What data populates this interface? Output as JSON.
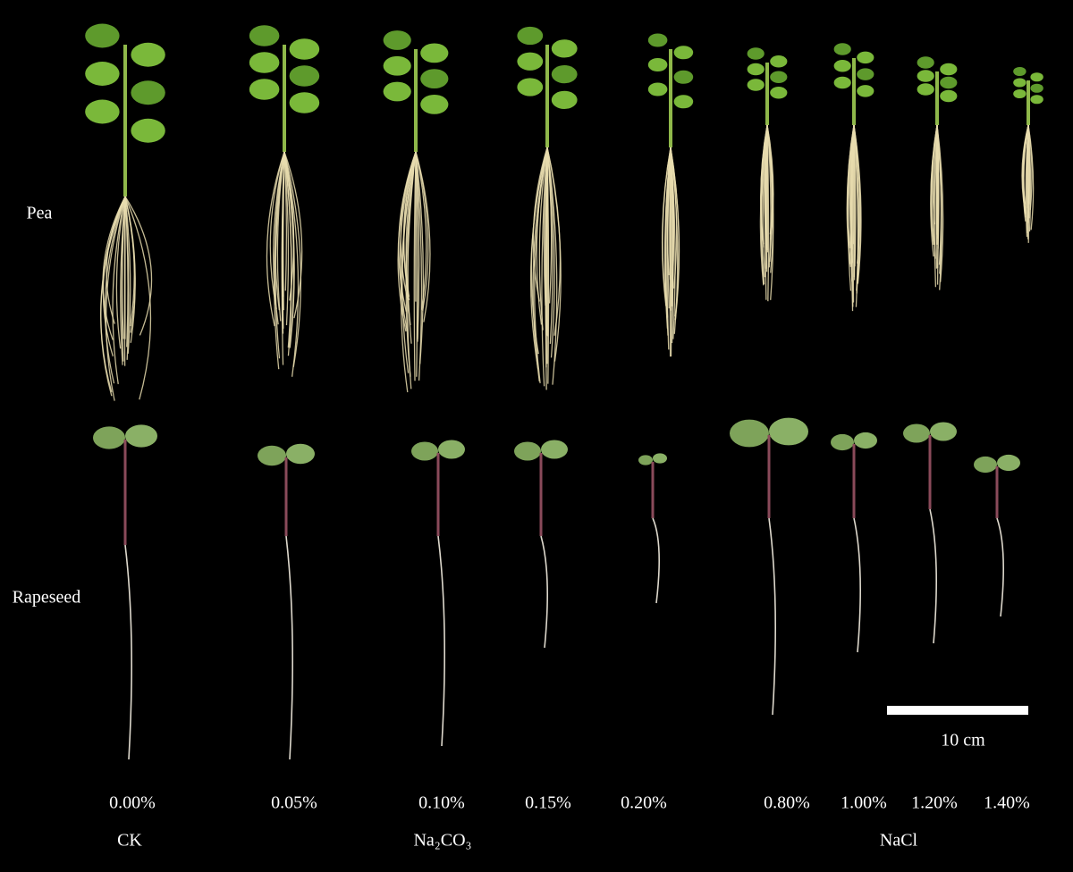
{
  "rows": [
    "Pea",
    "Rapeseed"
  ],
  "concentrations": [
    "0.00%",
    "0.05%",
    "0.10%",
    "0.15%",
    "0.20%",
    "0.80%",
    "1.00%",
    "1.20%",
    "1.40%"
  ],
  "groups": [
    "CK",
    "Na₂CO₃",
    "NaCl"
  ],
  "scale_bar": {
    "label": "10 cm"
  }
}
